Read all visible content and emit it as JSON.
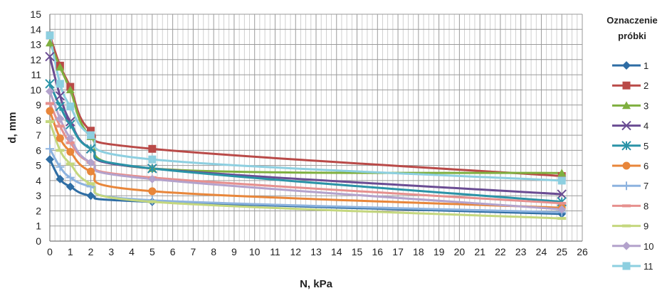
{
  "chart_data": {
    "type": "line",
    "title": "",
    "xlabel": "N, kPa",
    "ylabel": "d, mm",
    "xlim": [
      0,
      26
    ],
    "ylim": [
      0,
      15
    ],
    "x_ticks": [
      0,
      1,
      2,
      3,
      4,
      5,
      6,
      7,
      8,
      9,
      10,
      11,
      12,
      13,
      14,
      15,
      16,
      17,
      18,
      19,
      20,
      21,
      22,
      23,
      24,
      25,
      26
    ],
    "y_ticks": [
      0,
      1,
      2,
      3,
      4,
      5,
      6,
      7,
      8,
      9,
      10,
      11,
      12,
      13,
      14,
      15
    ],
    "x_minor_step": 0.25,
    "grid": true,
    "legend": {
      "title_lines": [
        "Oznaczenie",
        "próbki"
      ],
      "position": "right"
    },
    "x": [
      0,
      0.5,
      1,
      2,
      5,
      25
    ],
    "series": [
      {
        "name": "1",
        "color": "#2E6DA4",
        "marker": "diamond",
        "values": [
          5.4,
          4.1,
          3.6,
          3.0,
          2.6,
          1.8
        ]
      },
      {
        "name": "2",
        "color": "#B94A48",
        "marker": "square",
        "values": [
          13.6,
          11.6,
          10.2,
          7.3,
          6.1,
          4.3
        ]
      },
      {
        "name": "3",
        "color": "#7FAF3F",
        "marker": "triangle",
        "values": [
          13.1,
          11.5,
          10.0,
          6.9,
          4.8,
          4.5
        ]
      },
      {
        "name": "4",
        "color": "#6A4C93",
        "marker": "x",
        "values": [
          12.2,
          9.6,
          7.9,
          6.1,
          4.8,
          3.1
        ]
      },
      {
        "name": "5",
        "color": "#2A93A7",
        "marker": "star",
        "values": [
          10.4,
          8.9,
          7.7,
          6.1,
          4.8,
          2.6
        ]
      },
      {
        "name": "6",
        "color": "#E8863A",
        "marker": "circle",
        "values": [
          8.6,
          6.8,
          5.9,
          4.6,
          3.3,
          2.2
        ]
      },
      {
        "name": "7",
        "color": "#8DB3DF",
        "marker": "plus",
        "values": [
          6.1,
          4.9,
          4.2,
          3.6,
          2.7,
          1.9
        ]
      },
      {
        "name": "8",
        "color": "#E6908E",
        "marker": "dash",
        "values": [
          9.1,
          7.6,
          6.5,
          5.2,
          4.2,
          2.5
        ]
      },
      {
        "name": "9",
        "color": "#C4D77E",
        "marker": "dash",
        "values": [
          7.9,
          6.0,
          5.1,
          3.8,
          2.6,
          1.5
        ]
      },
      {
        "name": "10",
        "color": "#B3A2CC",
        "marker": "diamond",
        "values": [
          9.9,
          8.1,
          6.8,
          5.2,
          4.1,
          2.1
        ]
      },
      {
        "name": "11",
        "color": "#8DCFE0",
        "marker": "square",
        "values": [
          13.6,
          10.4,
          8.9,
          7.0,
          5.4,
          4.0
        ]
      }
    ]
  }
}
